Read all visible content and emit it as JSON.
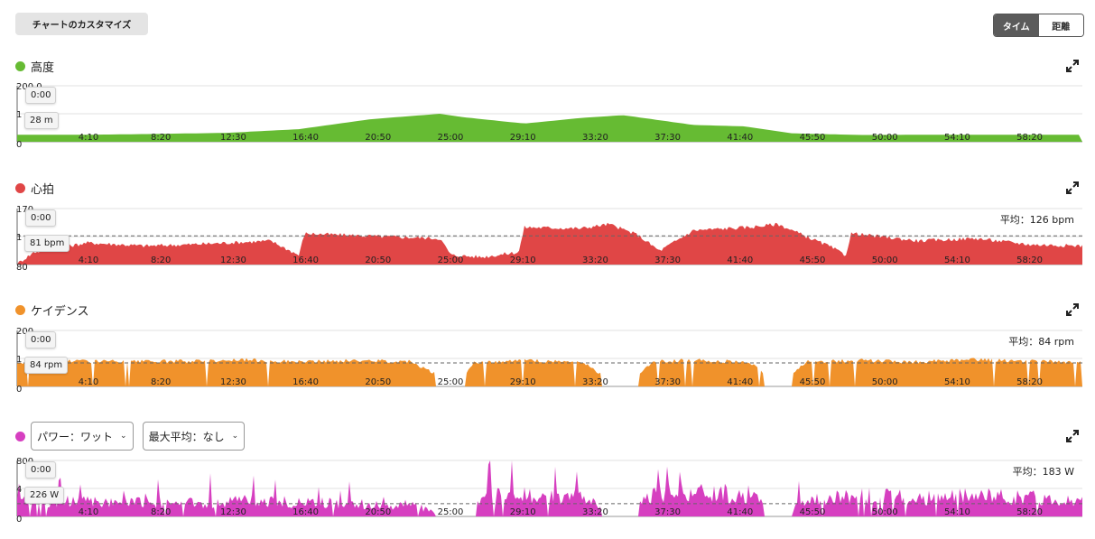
{
  "header": {
    "customize_label": "チャートのカスタマイズ",
    "toggle": {
      "time_label": "タイム",
      "distance_label": "距離",
      "active": "time"
    }
  },
  "x_ticks": [
    "4:10",
    "8:20",
    "12:30",
    "16:40",
    "20:50",
    "25:00",
    "29:10",
    "33:20",
    "37:30",
    "41:40",
    "45:50",
    "50:00",
    "54:10",
    "58:20"
  ],
  "panels": [
    {
      "key": "altitude",
      "title": "高度",
      "color": "#66bb33",
      "y_max_label": "200.0",
      "y_mid_label": "1",
      "y_min_label": "0",
      "ylim": [
        0,
        200
      ],
      "tooltip_time": "0:00",
      "tooltip_value": "28 m",
      "avg_label": "",
      "icon": "expand-icon"
    },
    {
      "key": "heart_rate",
      "title": "心拍",
      "color": "#e04646",
      "y_max_label": "170",
      "y_mid_label": "1",
      "y_min_label": "80",
      "ylim": [
        80,
        170
      ],
      "tooltip_time": "0:00",
      "tooltip_value": "81 bpm",
      "avg_label": "平均：126 bpm",
      "avg_value": 126,
      "icon": "expand-icon"
    },
    {
      "key": "cadence",
      "title": "ケイデンス",
      "color": "#f0922b",
      "y_max_label": "200",
      "y_mid_label": "1",
      "y_min_label": "0",
      "ylim": [
        0,
        200
      ],
      "tooltip_time": "0:00",
      "tooltip_value": "84 rpm",
      "avg_label": "平均：84 rpm",
      "avg_value": 84,
      "icon": "expand-icon"
    },
    {
      "key": "power",
      "title": "",
      "color": "#d63fc0",
      "dropdown_metric": "パワー：ワット",
      "dropdown_maxavg": "最大平均：なし",
      "y_max_label": "800",
      "y_mid_label": "4",
      "y_min_label": "0",
      "ylim": [
        0,
        800
      ],
      "tooltip_time": "0:00",
      "tooltip_value": "226 W",
      "avg_label": "平均：183 W",
      "avg_value": 183,
      "icon": "expand-icon"
    }
  ],
  "chart_data": [
    {
      "type": "area",
      "series": [
        {
          "name": "高度",
          "x_min": [
            0,
            250,
            500,
            750,
            1000,
            1250,
            1500,
            1580,
            1800,
            2000,
            2150,
            2400,
            2580,
            2750,
            3000,
            3200,
            3600,
            3780
          ],
          "values": [
            25,
            25,
            28,
            32,
            45,
            80,
            100,
            88,
            65,
            85,
            95,
            60,
            55,
            30,
            24,
            25,
            25,
            25
          ]
        }
      ],
      "xlim": [
        0,
        3780
      ],
      "ylim": [
        0,
        200
      ]
    },
    {
      "type": "area",
      "series": [
        {
          "name": "心拍",
          "x_min": [
            0,
            60,
            250,
            450,
            600,
            900,
            1000,
            1020,
            1300,
            1500,
            1540,
            1650,
            1780,
            1800,
            2000,
            2100,
            2200,
            2280,
            2400,
            2600,
            2700,
            2800,
            2880,
            2940,
            2960,
            3200,
            3400,
            3600,
            3780
          ],
          "values": [
            81,
            100,
            115,
            110,
            112,
            118,
            95,
            130,
            125,
            122,
            95,
            92,
            100,
            140,
            138,
            145,
            128,
            102,
            135,
            140,
            145,
            125,
            110,
            95,
            130,
            118,
            122,
            112,
            110
          ]
        }
      ],
      "xlim": [
        0,
        3780
      ],
      "ylim": [
        80,
        170
      ]
    },
    {
      "type": "area",
      "series": [
        {
          "name": "ケイデンス",
          "x_min": [
            0,
            200,
            400,
            600,
            800,
            1000,
            1200,
            1400,
            1560,
            1620,
            1800,
            2000,
            2150,
            2260,
            2400,
            2600,
            2700,
            2800,
            3000,
            3200,
            3400,
            3600,
            3780
          ],
          "values": [
            84,
            92,
            88,
            90,
            95,
            88,
            92,
            90,
            0,
            86,
            92,
            88,
            0,
            88,
            94,
            86,
            0,
            90,
            92,
            88,
            95,
            90,
            86
          ]
        }
      ],
      "xlim": [
        0,
        3780
      ],
      "ylim": [
        0,
        200
      ]
    },
    {
      "type": "area",
      "series": [
        {
          "name": "パワー",
          "x_min": [
            0,
            200,
            400,
            600,
            800,
            1000,
            1200,
            1400,
            1560,
            1700,
            1800,
            2000,
            2150,
            2260,
            2400,
            2600,
            2700,
            2800,
            3000,
            3200,
            3400,
            3600,
            3780
          ],
          "values": [
            226,
            200,
            190,
            180,
            210,
            190,
            170,
            150,
            0,
            300,
            280,
            260,
            0,
            320,
            340,
            300,
            0,
            230,
            290,
            250,
            280,
            260,
            200
          ]
        }
      ],
      "xlim": [
        0,
        3780
      ],
      "ylim": [
        0,
        800
      ]
    }
  ]
}
